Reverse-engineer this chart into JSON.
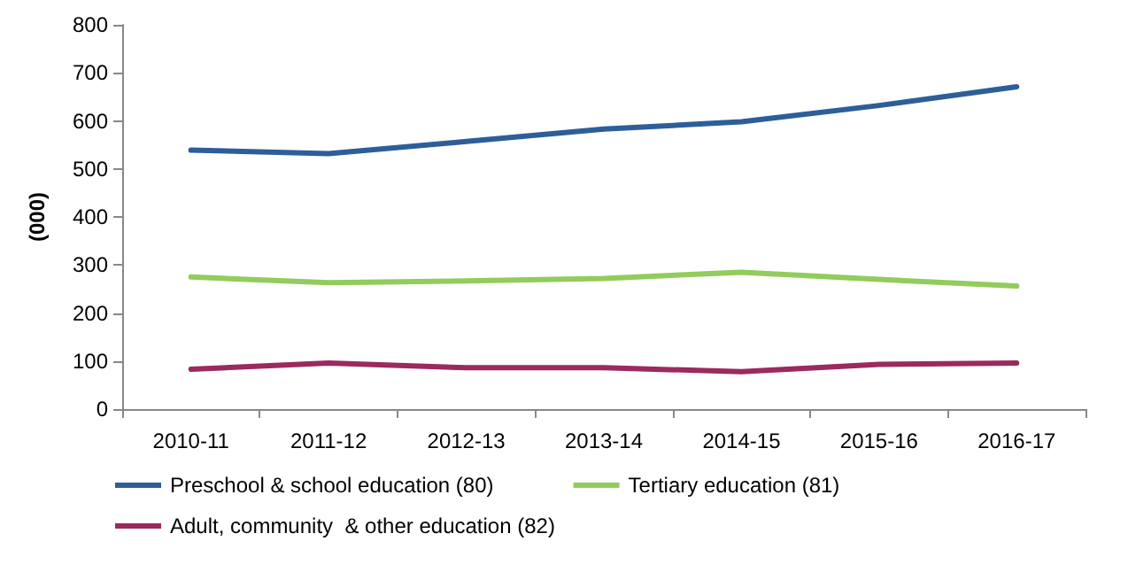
{
  "chart_data": {
    "type": "line",
    "ylabel": "(000)",
    "categories": [
      "2010-11",
      "2011-12",
      "2012-13",
      "2013-14",
      "2014-15",
      "2015-16",
      "2016-17"
    ],
    "series": [
      {
        "name": "Preschool & school education (80)",
        "color": "#2e5e9a",
        "values": [
          539,
          532,
          557,
          583,
          598,
          632,
          671
        ]
      },
      {
        "name": "Tertiary education (81)",
        "color": "#92cc5c",
        "values": [
          275,
          263,
          267,
          272,
          285,
          270,
          256
        ]
      },
      {
        "name": "Adult, community  & other education (82)",
        "color": "#9b2a5e",
        "values": [
          83,
          96,
          86,
          86,
          78,
          93,
          96
        ]
      }
    ],
    "ylim": [
      0,
      800
    ],
    "yticks": [
      0,
      100,
      200,
      300,
      400,
      500,
      600,
      700,
      800
    ],
    "grid": false,
    "legend": "bottom",
    "marker": "none",
    "line_style": "solid"
  }
}
